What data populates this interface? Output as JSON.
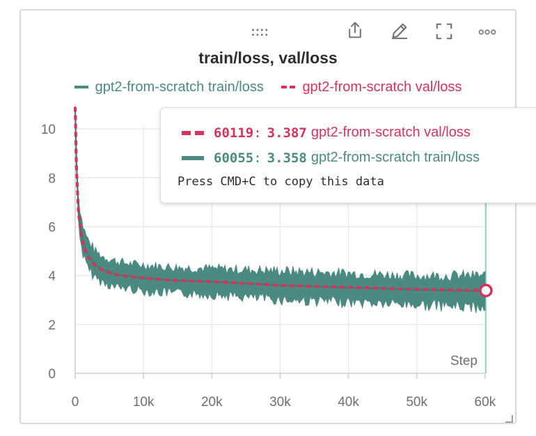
{
  "panel": {
    "toolbar": [
      {
        "name": "drag-handle-icon"
      },
      {
        "name": "export-icon"
      },
      {
        "name": "edit-icon"
      },
      {
        "name": "fullscreen-icon"
      },
      {
        "name": "more-icon"
      }
    ]
  },
  "chart_data": {
    "type": "line",
    "title": "train/loss, val/loss",
    "xlabel": "Step",
    "ylabel": "",
    "xlim": [
      0,
      60119
    ],
    "ylim": [
      0,
      11
    ],
    "x_ticks": [
      0,
      10000,
      20000,
      30000,
      40000,
      50000,
      60000
    ],
    "x_tick_labels": [
      "0",
      "10k",
      "20k",
      "30k",
      "40k",
      "50k",
      "60k"
    ],
    "y_ticks": [
      0,
      2,
      4,
      6,
      8,
      10
    ],
    "y_tick_labels": [
      "0",
      "2",
      "4",
      "6",
      "8",
      "10"
    ],
    "grid": true,
    "legend_position": "top",
    "series": [
      {
        "name": "gpt2-from-scratch train/loss",
        "color": "#4b8a80",
        "style": "band",
        "x": [
          0,
          200,
          500,
          1000,
          1500,
          2000,
          3000,
          4000,
          5000,
          6000,
          8000,
          10000,
          12000,
          15000,
          20000,
          25000,
          30000,
          35000,
          40000,
          45000,
          50000,
          55000,
          60055
        ],
        "y": [
          10.9,
          8.5,
          6.6,
          5.6,
          5.1,
          4.8,
          4.45,
          4.25,
          4.15,
          4.05,
          3.98,
          3.9,
          3.85,
          3.8,
          3.75,
          3.68,
          3.6,
          3.55,
          3.5,
          3.46,
          3.42,
          3.39,
          3.358
        ],
        "y_upper": [
          10.9,
          8.8,
          7.0,
          6.1,
          5.6,
          5.3,
          4.9,
          4.7,
          4.6,
          4.5,
          4.4,
          4.35,
          4.3,
          4.25,
          4.2,
          4.15,
          4.1,
          4.05,
          4.0,
          3.95,
          3.9,
          3.9,
          3.9
        ],
        "y_lower": [
          10.9,
          8.2,
          6.2,
          5.1,
          4.6,
          4.3,
          4.0,
          3.8,
          3.7,
          3.6,
          3.55,
          3.45,
          3.4,
          3.35,
          3.3,
          3.2,
          3.1,
          3.05,
          3.0,
          2.95,
          2.9,
          2.85,
          2.8
        ]
      },
      {
        "name": "gpt2-from-scratch val/loss",
        "color": "#d6335c",
        "style": "dashed",
        "x": [
          0,
          200,
          500,
          1000,
          1500,
          2000,
          3000,
          4000,
          5000,
          6000,
          8000,
          10000,
          12000,
          15000,
          20000,
          25000,
          30000,
          35000,
          40000,
          45000,
          50000,
          55000,
          60119
        ],
        "y": [
          10.9,
          8.3,
          6.5,
          5.5,
          5.0,
          4.7,
          4.4,
          4.22,
          4.12,
          4.03,
          3.96,
          3.9,
          3.85,
          3.8,
          3.75,
          3.68,
          3.6,
          3.56,
          3.52,
          3.48,
          3.44,
          3.41,
          3.387
        ]
      }
    ],
    "hover": {
      "rows": [
        {
          "series": "gpt2-from-scratch val/loss",
          "step": "60119",
          "value": "3.387",
          "color": "#d6335c",
          "dashed": true
        },
        {
          "series": "gpt2-from-scratch train/loss",
          "step": "60055",
          "value": "3.358",
          "color": "#4b8a80",
          "dashed": false
        }
      ],
      "hint": "Press CMD+C to copy this data"
    }
  }
}
